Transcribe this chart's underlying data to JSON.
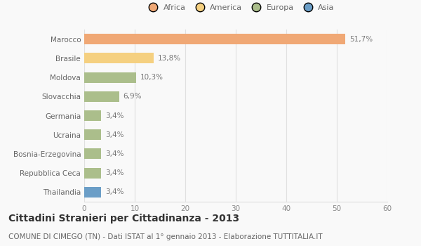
{
  "categories": [
    "Marocco",
    "Brasile",
    "Moldova",
    "Slovacchia",
    "Germania",
    "Ucraina",
    "Bosnia-Erzegovina",
    "Repubblica Ceca",
    "Thailandia"
  ],
  "values": [
    51.7,
    13.8,
    10.3,
    6.9,
    3.4,
    3.4,
    3.4,
    3.4,
    3.4
  ],
  "labels": [
    "51,7%",
    "13,8%",
    "10,3%",
    "6,9%",
    "3,4%",
    "3,4%",
    "3,4%",
    "3,4%",
    "3,4%"
  ],
  "colors": [
    "#F0A875",
    "#F5D080",
    "#ABBE8B",
    "#ABBE8B",
    "#ABBE8B",
    "#ABBE8B",
    "#ABBE8B",
    "#ABBE8B",
    "#6B9EC7"
  ],
  "legend_labels": [
    "Africa",
    "America",
    "Europa",
    "Asia"
  ],
  "legend_colors": [
    "#F0A875",
    "#F5D080",
    "#ABBE8B",
    "#6B9EC7"
  ],
  "xlim": [
    0,
    60
  ],
  "xticks": [
    0,
    10,
    20,
    30,
    40,
    50,
    60
  ],
  "title": "Cittadini Stranieri per Cittadinanza - 2013",
  "subtitle": "COMUNE DI CIMEGO (TN) - Dati ISTAT al 1° gennaio 2013 - Elaborazione TUTTITALIA.IT",
  "bg_color": "#f9f9f9",
  "grid_color": "#e0e0e0",
  "bar_height": 0.55,
  "title_fontsize": 10,
  "subtitle_fontsize": 7.5,
  "label_fontsize": 7.5,
  "tick_fontsize": 7.5,
  "legend_fontsize": 8
}
